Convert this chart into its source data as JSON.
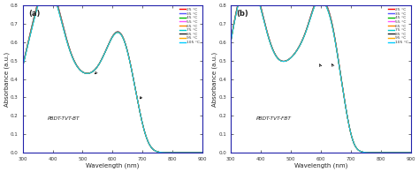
{
  "panel_a_label": "(a)",
  "panel_b_label": "(b)",
  "xlabel": "Wavelength (nm)",
  "ylabel": "Absorbance (a.u.)",
  "xlim": [
    300,
    900
  ],
  "ylim": [
    0,
    0.8
  ],
  "yticks": [
    0.0,
    0.1,
    0.2,
    0.3,
    0.4,
    0.5,
    0.6,
    0.7,
    0.8
  ],
  "xticks": [
    300,
    400,
    500,
    600,
    700,
    800,
    900
  ],
  "label_a": "PBDT-TVT-BT",
  "label_b": "PBDT-TVT-FBT",
  "temperatures": [
    "25 °C",
    "35 °C",
    "45 °C",
    "55 °C",
    "65 °C",
    "75 °C",
    "85 °C",
    "95 °C",
    "105 °C"
  ],
  "colors": [
    "#ff0000",
    "#5555ff",
    "#00bb00",
    "#ff55ff",
    "#ff8800",
    "#00cccc",
    "#222222",
    "#ffaa00",
    "#00ccff"
  ],
  "background_color": "#ffffff",
  "border_color": "#2222aa"
}
